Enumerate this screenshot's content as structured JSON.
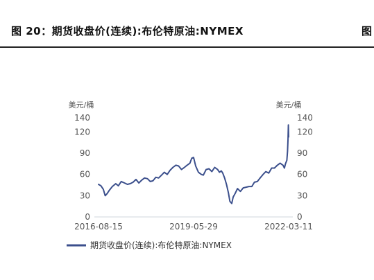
{
  "figure": {
    "title": "图 20：期货收盘价(连续):布伦特原油:NYMEX",
    "title_right_fragment": "图"
  },
  "chart_data": {
    "type": "line",
    "left_axis_label": "美元/桶",
    "right_axis_label": "美元/桶",
    "ylim": [
      0,
      140
    ],
    "yticks": [
      "0",
      "30",
      "60",
      "90",
      "120",
      "140"
    ],
    "right_yticks": [
      "0",
      "30",
      "60",
      "90",
      "120",
      "140"
    ],
    "xticks": [
      "2016-08-15",
      "2019-05-29",
      "2022-03-11"
    ],
    "grid": false,
    "legend_position": "bottom",
    "line_color": "#3b4f8c",
    "series": [
      {
        "name": "期货收盘价(连续):布伦特原油:NYMEX",
        "points": [
          [
            "2016-08-15",
            46
          ],
          [
            "2016-09-10",
            44
          ],
          [
            "2016-10-05",
            39
          ],
          [
            "2016-10-25",
            30
          ],
          [
            "2016-11-15",
            33
          ],
          [
            "2016-12-10",
            38
          ],
          [
            "2017-01-10",
            43
          ],
          [
            "2017-02-15",
            47
          ],
          [
            "2017-03-15",
            44
          ],
          [
            "2017-04-15",
            50
          ],
          [
            "2017-05-20",
            48
          ],
          [
            "2017-06-20",
            46
          ],
          [
            "2017-07-20",
            47
          ],
          [
            "2017-08-20",
            49
          ],
          [
            "2017-09-20",
            53
          ],
          [
            "2017-10-20",
            48
          ],
          [
            "2017-11-20",
            52
          ],
          [
            "2017-12-20",
            55
          ],
          [
            "2018-01-20",
            54
          ],
          [
            "2018-02-20",
            50
          ],
          [
            "2018-03-20",
            51
          ],
          [
            "2018-04-20",
            56
          ],
          [
            "2018-05-20",
            55
          ],
          [
            "2018-06-20",
            59
          ],
          [
            "2018-07-20",
            63
          ],
          [
            "2018-08-20",
            60
          ],
          [
            "2018-09-20",
            66
          ],
          [
            "2018-10-20",
            70
          ],
          [
            "2018-11-20",
            73
          ],
          [
            "2018-12-20",
            72
          ],
          [
            "2019-01-20",
            67
          ],
          [
            "2019-02-20",
            70
          ],
          [
            "2019-03-20",
            73
          ],
          [
            "2019-04-20",
            76
          ],
          [
            "2019-05-10",
            83
          ],
          [
            "2019-05-29",
            84
          ],
          [
            "2019-06-20",
            72
          ],
          [
            "2019-07-20",
            63
          ],
          [
            "2019-08-20",
            60
          ],
          [
            "2019-09-10",
            59
          ],
          [
            "2019-10-10",
            67
          ],
          [
            "2019-11-10",
            68
          ],
          [
            "2019-12-10",
            64
          ],
          [
            "2020-01-10",
            70
          ],
          [
            "2020-02-10",
            67
          ],
          [
            "2020-03-01",
            63
          ],
          [
            "2020-03-20",
            65
          ],
          [
            "2020-04-05",
            62
          ],
          [
            "2020-04-25",
            55
          ],
          [
            "2020-05-15",
            46
          ],
          [
            "2020-06-05",
            34
          ],
          [
            "2020-06-20",
            22
          ],
          [
            "2020-07-10",
            19
          ],
          [
            "2020-07-25",
            28
          ],
          [
            "2020-08-15",
            33
          ],
          [
            "2020-09-10",
            40
          ],
          [
            "2020-10-10",
            36
          ],
          [
            "2020-11-10",
            41
          ],
          [
            "2020-12-10",
            42
          ],
          [
            "2021-01-10",
            43
          ],
          [
            "2021-02-10",
            43
          ],
          [
            "2021-03-10",
            49
          ],
          [
            "2021-04-10",
            50
          ],
          [
            "2021-05-10",
            55
          ],
          [
            "2021-06-10",
            60
          ],
          [
            "2021-07-10",
            64
          ],
          [
            "2021-08-10",
            62
          ],
          [
            "2021-09-10",
            69
          ],
          [
            "2021-10-10",
            69
          ],
          [
            "2021-11-10",
            73
          ],
          [
            "2021-12-10",
            76
          ],
          [
            "2022-01-10",
            73
          ],
          [
            "2022-01-25",
            69
          ],
          [
            "2022-02-05",
            75
          ],
          [
            "2022-02-20",
            80
          ],
          [
            "2022-02-27",
            93
          ],
          [
            "2022-03-04",
            110
          ],
          [
            "2022-03-08",
            130
          ],
          [
            "2022-03-11",
            113
          ]
        ]
      }
    ]
  }
}
